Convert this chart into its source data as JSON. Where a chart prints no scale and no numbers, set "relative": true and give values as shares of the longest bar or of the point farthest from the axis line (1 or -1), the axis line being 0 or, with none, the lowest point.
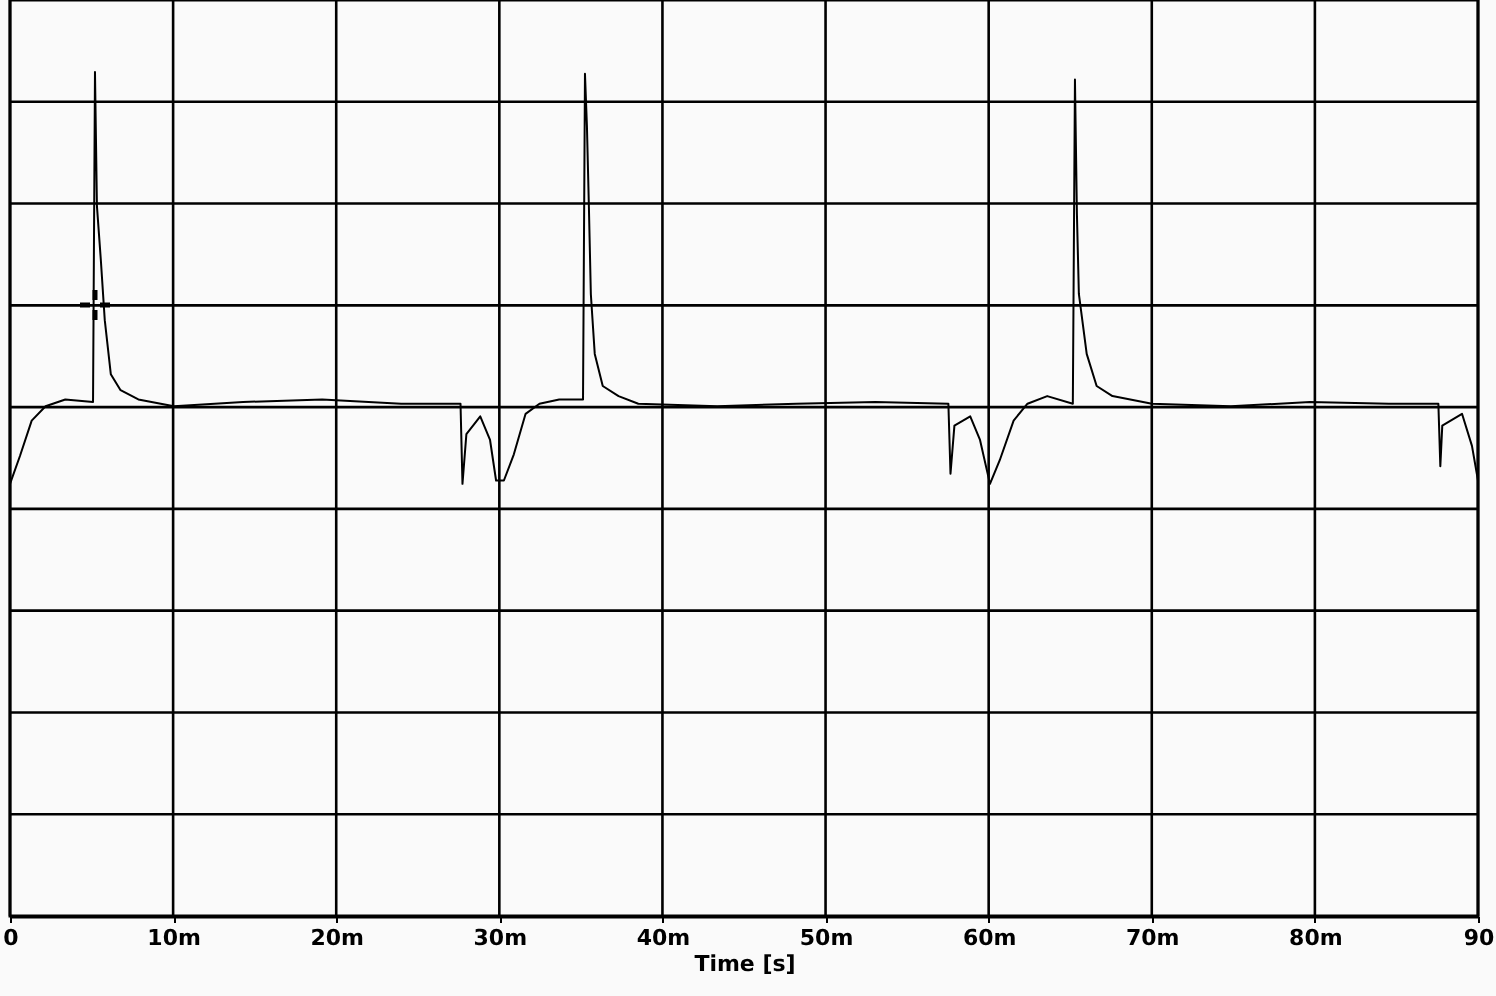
{
  "chart_data": {
    "type": "line",
    "relative": true,
    "xlabel": "Time [s]",
    "xlim": [
      0,
      90
    ],
    "xticks": [
      0,
      {
        "value": 10,
        "label": "10m"
      },
      {
        "value": 20,
        "label": "20m"
      },
      {
        "value": 30,
        "label": "30m"
      },
      {
        "value": 40,
        "label": "40m"
      },
      {
        "value": 50,
        "label": "50m"
      },
      {
        "value": 60,
        "label": "60m"
      },
      {
        "value": 70,
        "label": "70m"
      },
      {
        "value": 80,
        "label": "80m"
      },
      90
    ],
    "grid": true,
    "x": [
      0,
      0.61,
      1.33,
      2.18,
      3.39,
      5.09,
      5.21,
      5.33,
      5.57,
      5.81,
      6.18,
      6.78,
      7.87,
      10.05,
      14.29,
      19.14,
      23.98,
      27.62,
      27.74,
      27.98,
      28.83,
      29.43,
      29.8,
      30.28,
      30.89,
      31.61,
      32.46,
      33.67,
      35.13,
      35.25,
      35.37,
      35.49,
      35.61,
      35.85,
      36.34,
      37.31,
      38.52,
      43.36,
      48.21,
      53.05,
      57.53,
      57.66,
      57.9,
      58.87,
      59.47,
      60.08,
      60.68,
      61.53,
      62.38,
      63.59,
      65.16,
      65.29,
      65.41,
      65.53,
      66.01,
      66.62,
      67.59,
      70.01,
      74.85,
      79.7,
      84.54,
      87.57,
      87.69,
      87.81,
      89.02,
      89.63,
      90
    ],
    "series": [
      {
        "color": "#000000",
        "values": [
          0.512,
          0.545,
          0.587,
          0.604,
          0.612,
          0.609,
          1.0,
          0.841,
          0.777,
          0.706,
          0.642,
          0.623,
          0.612,
          0.604,
          0.609,
          0.612,
          0.607,
          0.607,
          0.512,
          0.571,
          0.592,
          0.564,
          0.516,
          0.516,
          0.547,
          0.595,
          0.607,
          0.612,
          0.612,
          0.998,
          0.936,
          0.841,
          0.737,
          0.666,
          0.628,
          0.616,
          0.607,
          0.604,
          0.607,
          0.609,
          0.607,
          0.524,
          0.581,
          0.592,
          0.564,
          0.512,
          0.54,
          0.587,
          0.607,
          0.616,
          0.607,
          0.991,
          0.832,
          0.737,
          0.666,
          0.628,
          0.616,
          0.607,
          0.604,
          0.609,
          0.607,
          0.607,
          0.533,
          0.581,
          0.595,
          0.557,
          0.516
        ]
      }
    ]
  }
}
